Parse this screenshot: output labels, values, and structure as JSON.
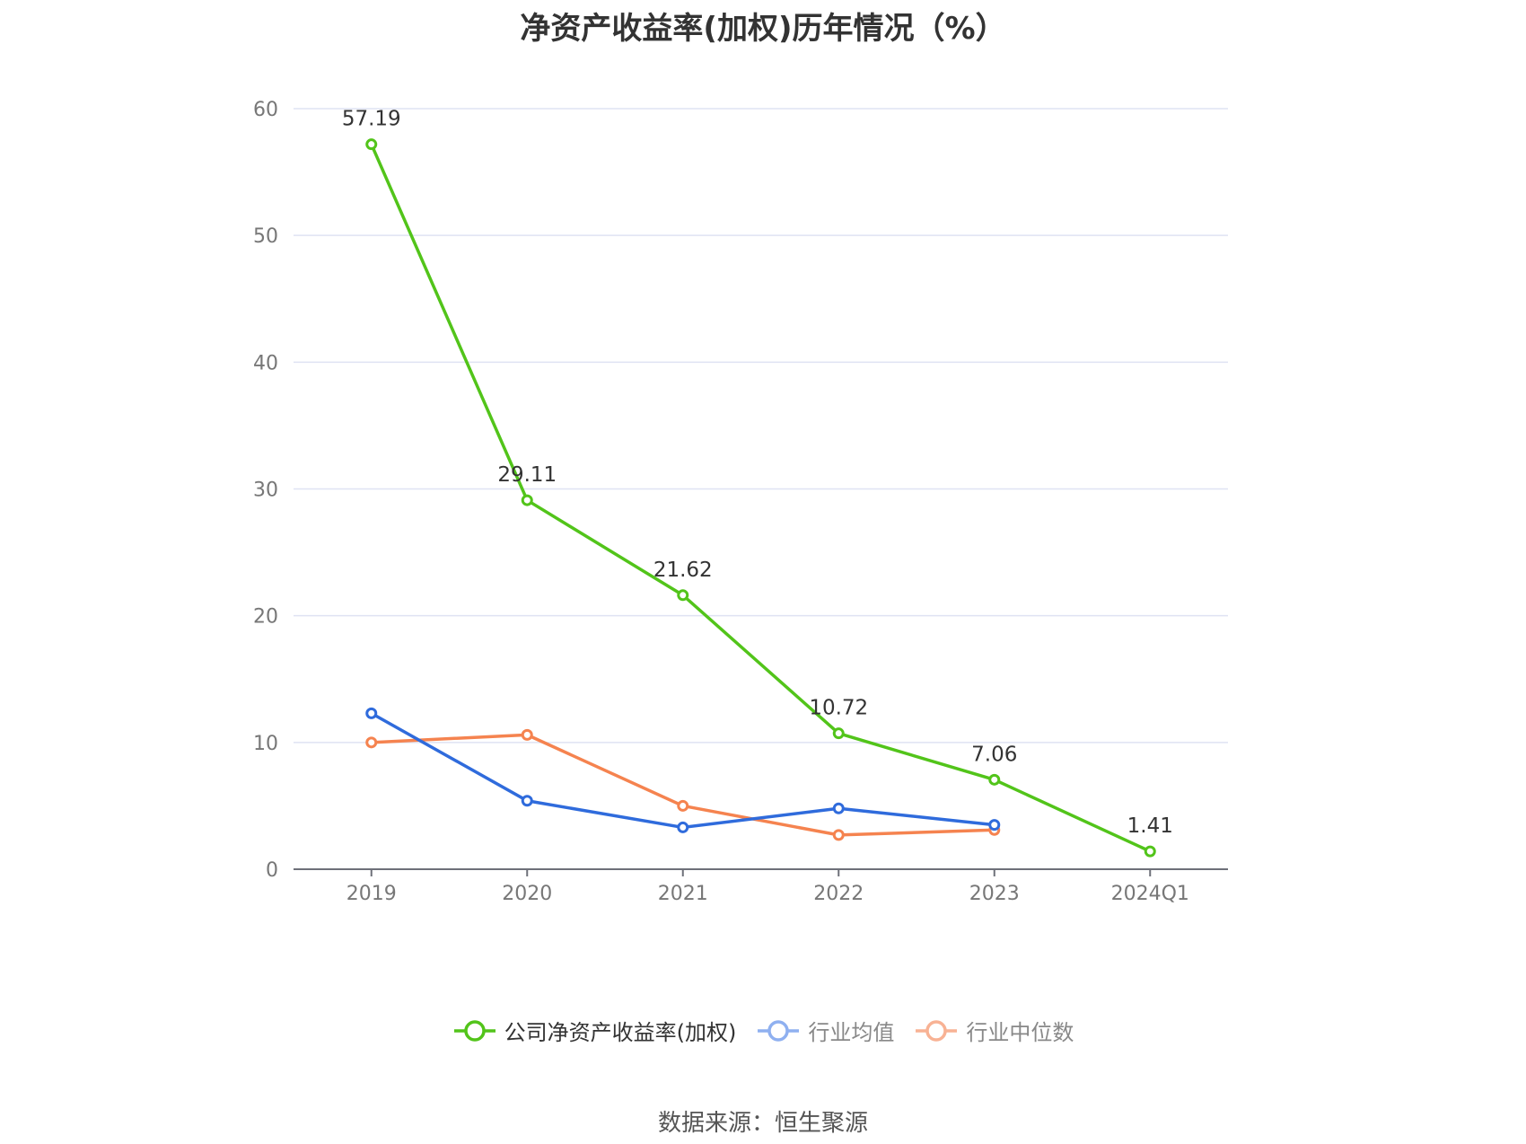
{
  "chart_data": {
    "type": "line",
    "title": "净资产收益率(加权)历年情况（%）",
    "categories": [
      "2019",
      "2020",
      "2021",
      "2022",
      "2023",
      "2024Q1"
    ],
    "ylim": [
      0,
      60
    ],
    "yticks": [
      0,
      10,
      20,
      30,
      40,
      50,
      60
    ],
    "grid": true,
    "legend_position": "bottom",
    "series": [
      {
        "name": "公司净资产收益率(加权)",
        "color": "#52c41a",
        "values": [
          57.19,
          29.11,
          21.62,
          10.72,
          7.06,
          1.41
        ],
        "labels": [
          "57.19",
          "29.11",
          "21.62",
          "10.72",
          "7.06",
          "1.41"
        ],
        "legend_text_color": "#333333"
      },
      {
        "name": "行业均值",
        "color": "#2f6bdc",
        "values": [
          12.3,
          5.4,
          3.3,
          4.8,
          3.5,
          null
        ],
        "legend_color": "#8fb0f0",
        "legend_text_color": "#888888"
      },
      {
        "name": "行业中位数",
        "color": "#f5834f",
        "values": [
          10.0,
          10.6,
          5.0,
          2.7,
          3.1,
          null
        ],
        "legend_color": "#f8b294",
        "legend_text_color": "#888888"
      }
    ]
  },
  "source": "数据来源：恒生聚源"
}
